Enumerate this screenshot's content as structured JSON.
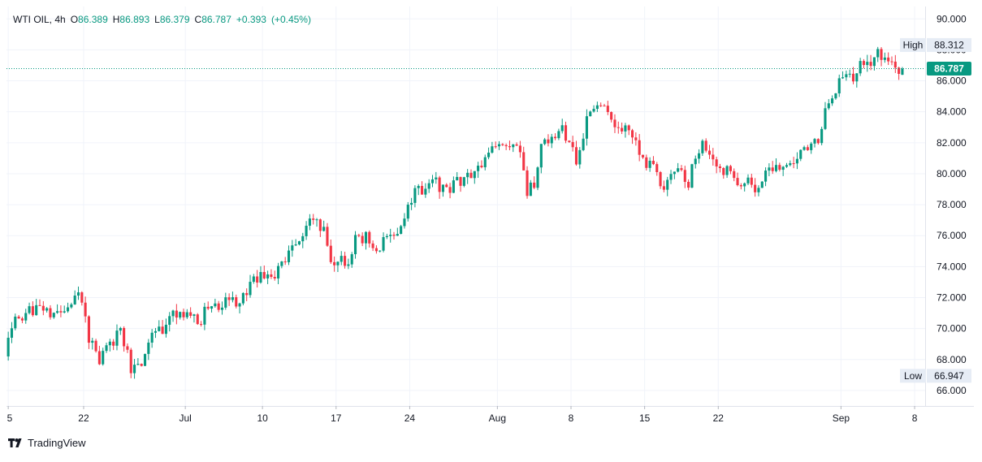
{
  "chart_data": {
    "type": "candlestick",
    "symbol": "WTI OIL",
    "interval": "4h",
    "ohlc_legend": {
      "open_label": "O",
      "open": "86.389",
      "high_label": "H",
      "high": "86.893",
      "low_label": "L",
      "low": "86.379",
      "close_label": "C",
      "close": "86.787",
      "change": "+0.393",
      "change_pct": "(+0.45%)"
    },
    "y_axis": {
      "min": 65.0,
      "max": 90.8,
      "ticks": [
        "66.000",
        "68.000",
        "70.000",
        "72.000",
        "74.000",
        "76.000",
        "78.000",
        "80.000",
        "82.000",
        "84.000",
        "86.000",
        "88.000",
        "90.000"
      ]
    },
    "x_axis": {
      "tick_labels": [
        "5",
        "22",
        "Jul",
        "10",
        "17",
        "24",
        "Aug",
        "8",
        "15",
        "22",
        "Sep",
        "8"
      ],
      "tick_positions": [
        0.0,
        21.5,
        50.5,
        72.5,
        93.5,
        114.5,
        139.5,
        160.5,
        181.5,
        202.5,
        237.5,
        258.5
      ],
      "bar_count": 262
    },
    "current_price": {
      "label": "86.787",
      "value": 86.787
    },
    "high_marker": {
      "label": "High",
      "value": "88.312",
      "price": 88.312
    },
    "low_marker": {
      "label": "Low",
      "value": "66.947",
      "price": 66.947
    },
    "price_path": [
      [
        0,
        68.2
      ],
      [
        2,
        70.4
      ],
      [
        6,
        71.0
      ],
      [
        10,
        71.6
      ],
      [
        14,
        70.6
      ],
      [
        18,
        71.4
      ],
      [
        20,
        72.4
      ],
      [
        22,
        72.1
      ],
      [
        24,
        69.2
      ],
      [
        27,
        68.0
      ],
      [
        30,
        69.0
      ],
      [
        33,
        69.7
      ],
      [
        36,
        67.5
      ],
      [
        39,
        67.2
      ],
      [
        41,
        69.5
      ],
      [
        45,
        70.0
      ],
      [
        48,
        70.8
      ],
      [
        52,
        71.3
      ],
      [
        55,
        70.2
      ],
      [
        58,
        71.4
      ],
      [
        61,
        71.2
      ],
      [
        64,
        71.9
      ],
      [
        67,
        71.6
      ],
      [
        70,
        72.8
      ],
      [
        73,
        73.5
      ],
      [
        76,
        73.2
      ],
      [
        79,
        74.0
      ],
      [
        82,
        75.3
      ],
      [
        85,
        76.0
      ],
      [
        88,
        77.1
      ],
      [
        91,
        76.4
      ],
      [
        93,
        74.3
      ],
      [
        96,
        74.4
      ],
      [
        98,
        74.2
      ],
      [
        100,
        75.6
      ],
      [
        103,
        76.0
      ],
      [
        106,
        75.2
      ],
      [
        109,
        75.6
      ],
      [
        112,
        76.4
      ],
      [
        115,
        77.6
      ],
      [
        117,
        79.4
      ],
      [
        119,
        78.8
      ],
      [
        123,
        79.4
      ],
      [
        126,
        78.8
      ],
      [
        130,
        79.6
      ],
      [
        133,
        79.8
      ],
      [
        136,
        80.4
      ],
      [
        139,
        81.8
      ],
      [
        143,
        81.6
      ],
      [
        145,
        82.2
      ],
      [
        147,
        81.8
      ],
      [
        149,
        79.0
      ],
      [
        151,
        79.2
      ],
      [
        153,
        81.9
      ],
      [
        156,
        82.4
      ],
      [
        159,
        82.7
      ],
      [
        162,
        81.8
      ],
      [
        163,
        80.2
      ],
      [
        165,
        82.6
      ],
      [
        167,
        84.0
      ],
      [
        170,
        84.6
      ],
      [
        172,
        83.6
      ],
      [
        174,
        83.0
      ],
      [
        177,
        82.8
      ],
      [
        180,
        82.0
      ],
      [
        183,
        80.8
      ],
      [
        185,
        80.4
      ],
      [
        188,
        79.2
      ],
      [
        190,
        79.6
      ],
      [
        193,
        80.4
      ],
      [
        195,
        79.4
      ],
      [
        197,
        81.2
      ],
      [
        199,
        82.0
      ],
      [
        201,
        80.9
      ],
      [
        204,
        80.2
      ],
      [
        207,
        80.0
      ],
      [
        209,
        79.0
      ],
      [
        212,
        79.3
      ],
      [
        214,
        78.8
      ],
      [
        216,
        79.6
      ],
      [
        218,
        80.5
      ],
      [
        221,
        80.4
      ],
      [
        224,
        80.8
      ],
      [
        227,
        81.4
      ],
      [
        230,
        81.8
      ],
      [
        232,
        82.2
      ],
      [
        234,
        84.0
      ],
      [
        236,
        85.0
      ],
      [
        238,
        86.2
      ],
      [
        240,
        86.3
      ],
      [
        242,
        85.8
      ],
      [
        244,
        87.6
      ],
      [
        246,
        86.8
      ],
      [
        248,
        87.8
      ],
      [
        250,
        87.6
      ],
      [
        252,
        87.0
      ],
      [
        254,
        86.8
      ],
      [
        255,
        86.787
      ]
    ]
  },
  "brand": {
    "name": "TradingView"
  },
  "colors": {
    "up": "#089981",
    "down": "#f23645",
    "grid": "#f0f3fa",
    "axis_text": "#131722",
    "price_tag": "#089981",
    "marker_bg": "#e6ecf5"
  }
}
